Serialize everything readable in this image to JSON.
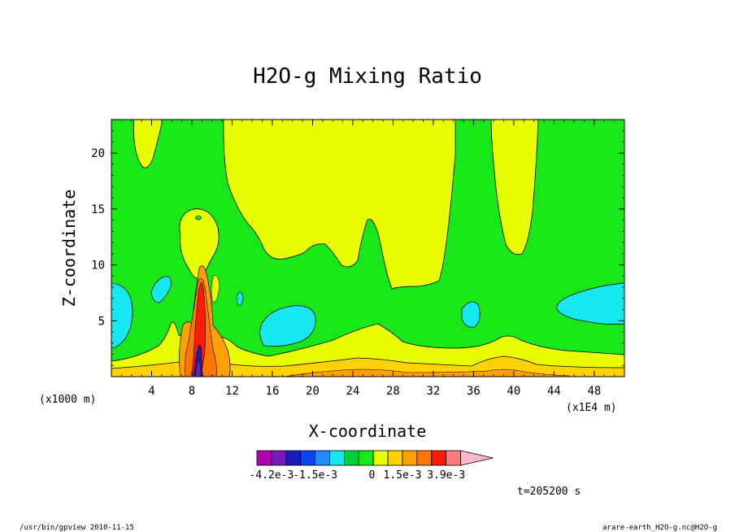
{
  "chart_data": {
    "type": "heatmap",
    "title": "H2O-g Mixing Ratio",
    "xlabel": "X-coordinate",
    "ylabel": "Z-coordinate",
    "x_units": "(x1E4 m)",
    "y_units": "(x1000 m)",
    "xlim": [
      0,
      51
    ],
    "ylim": [
      0,
      23
    ],
    "x_ticks": [
      4,
      8,
      12,
      16,
      20,
      24,
      28,
      32,
      36,
      40,
      44,
      48
    ],
    "y_ticks": [
      5,
      10,
      15,
      20
    ],
    "colorbar": {
      "colors": [
        "#b000b0",
        "#7a1ab8",
        "#1c1cb8",
        "#0a46f0",
        "#1e8cff",
        "#16e8f0",
        "#00d03c",
        "#18e818",
        "#e8ff00",
        "#ffd200",
        "#ffa000",
        "#ff7600",
        "#ff1a00",
        "#ff7c7c",
        "#ffb8c8"
      ],
      "tick_labels": [
        "-4.2e-3",
        "-1.5e-3",
        "0",
        "1.5e-3",
        "3.9e-3"
      ],
      "tick_values": [
        -0.0042,
        -0.0015,
        0,
        0.0015,
        0.0039
      ]
    },
    "time_label": "t=205200 s"
  },
  "footer": {
    "left": "/usr/bin/gpview  2010-11-15",
    "right": "arare-earth_H2O-g.nc@H2O-g"
  }
}
